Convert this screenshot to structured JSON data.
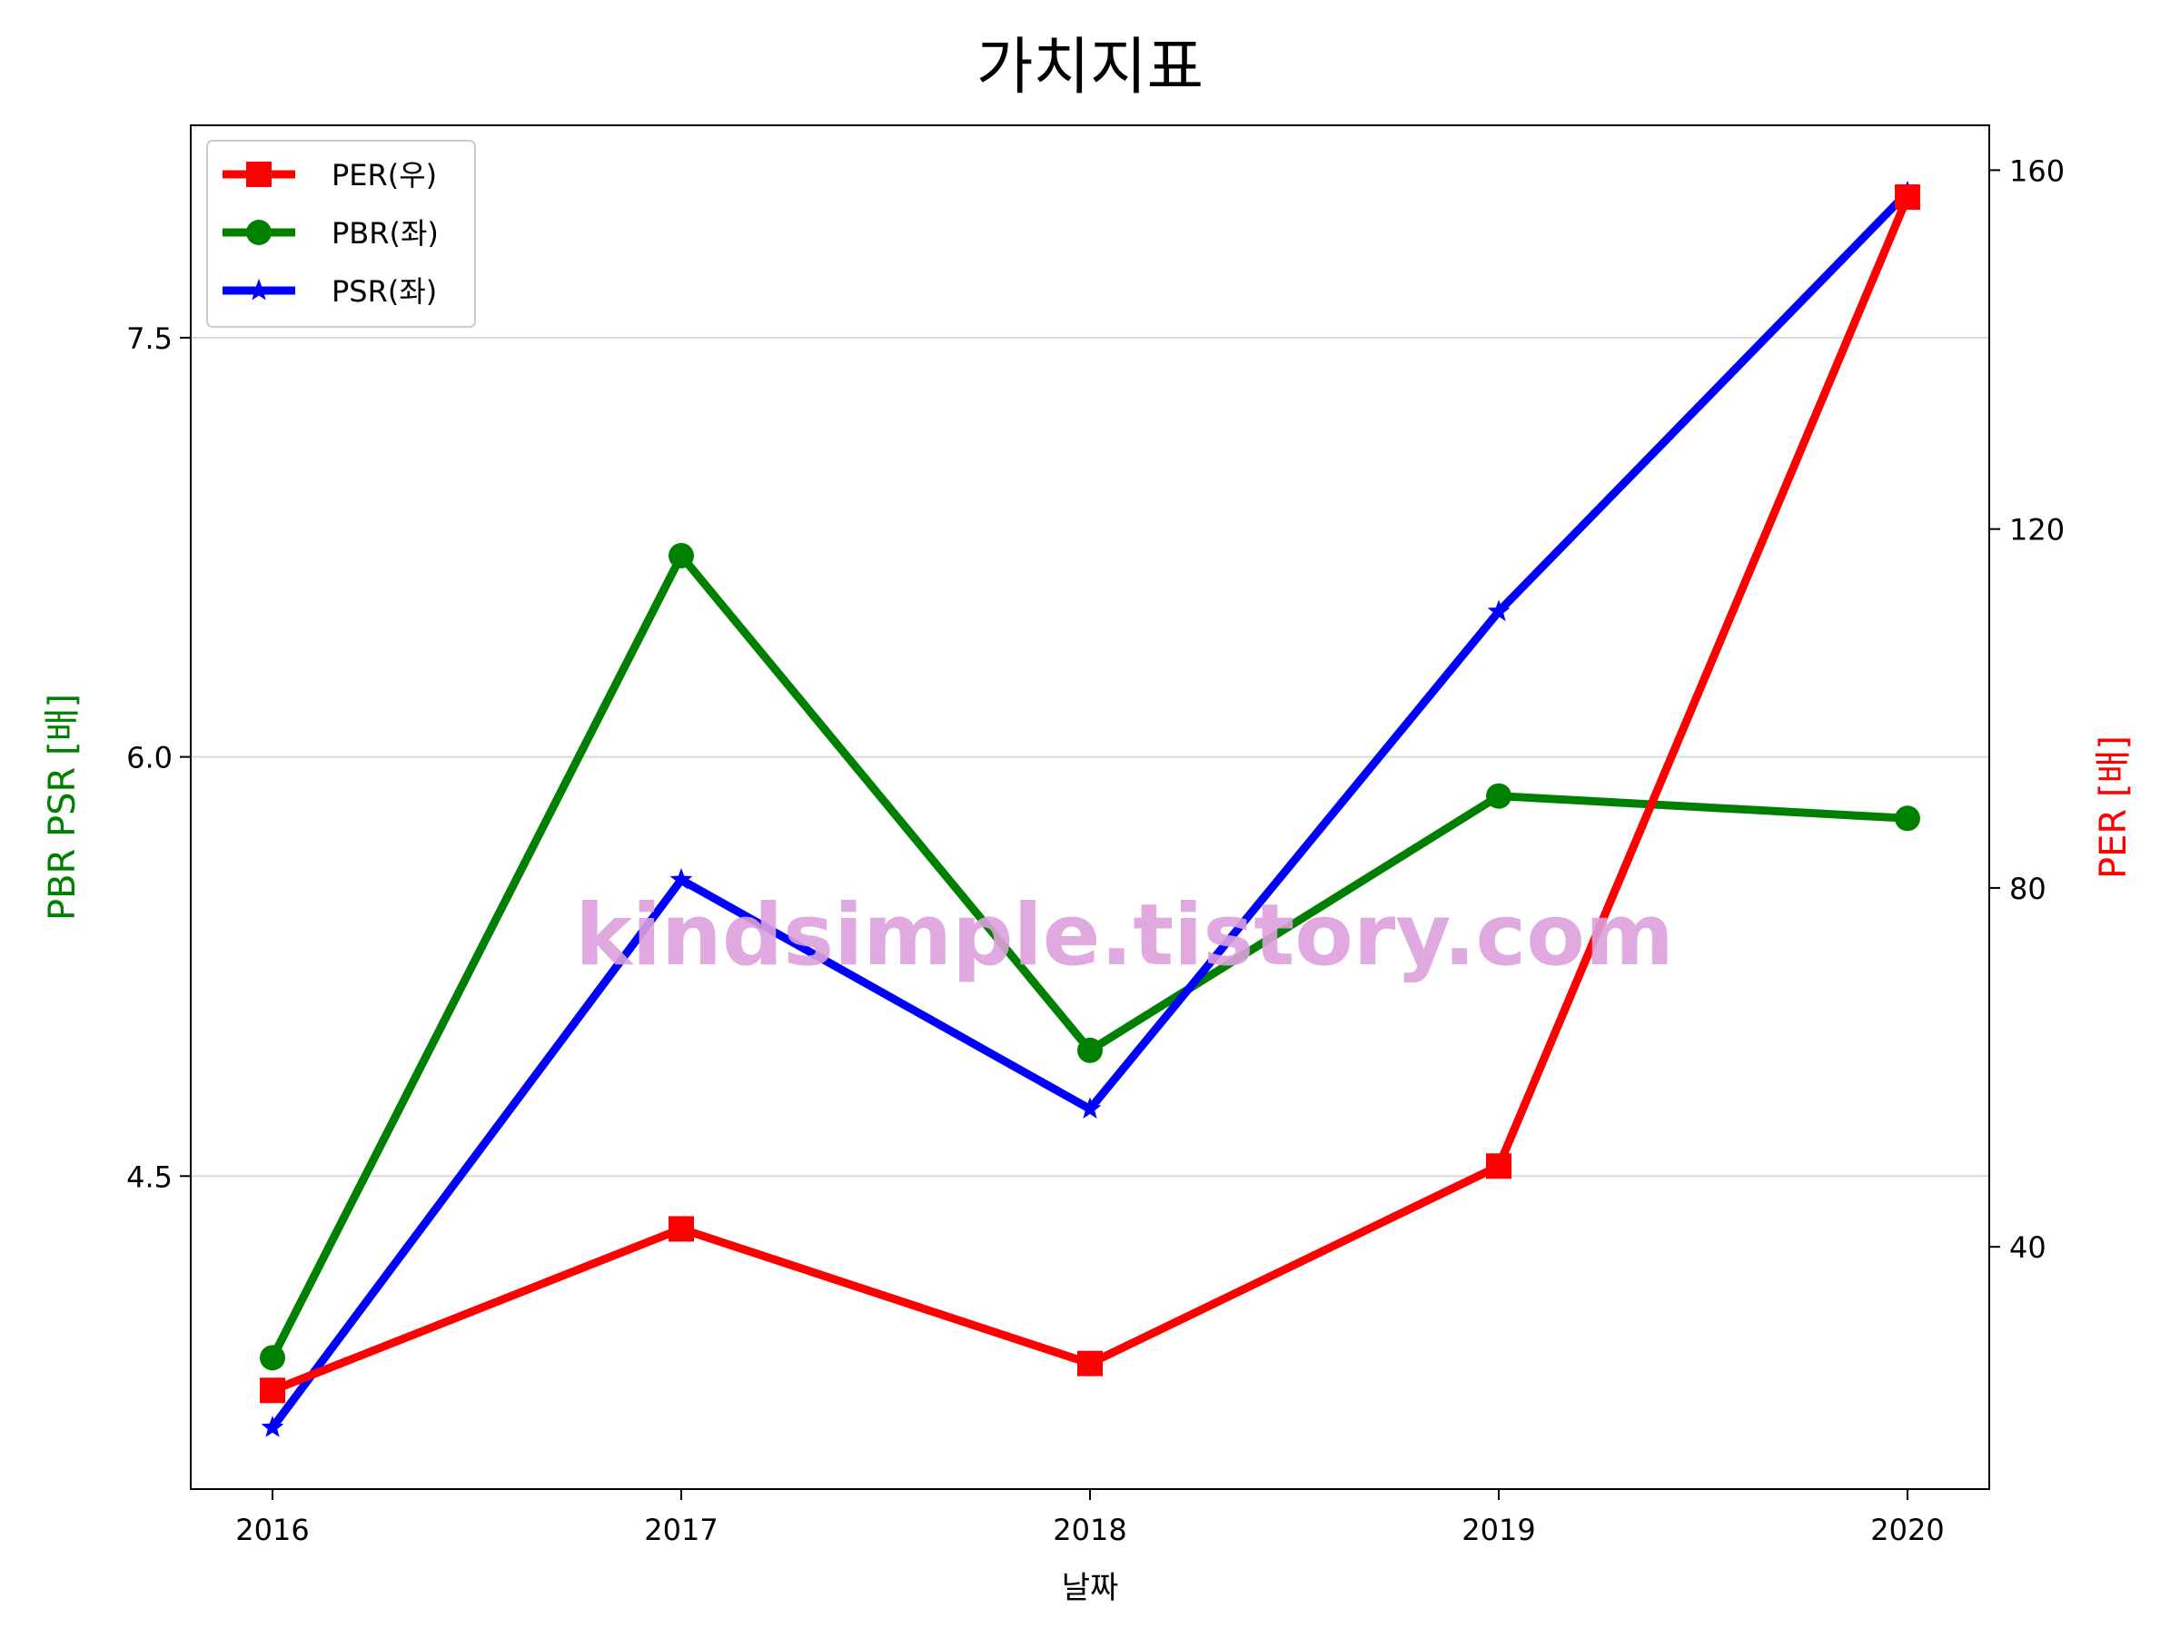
{
  "chart_data": {
    "type": "line",
    "title": "가치지표",
    "xlabel": "날짜",
    "ylabel_left": "PBR PSR [배]",
    "ylabel_right": "PER [배]",
    "categories": [
      "2016",
      "2017",
      "2018",
      "2019",
      "2020"
    ],
    "y_left": {
      "lim": [
        3.38,
        8.26
      ],
      "ticks": [
        "4.5",
        "6.0",
        "7.5"
      ],
      "tick_values": [
        4.5,
        6.0,
        7.5
      ]
    },
    "y_right": {
      "lim": [
        13,
        165
      ],
      "ticks": [
        "40",
        "80",
        "120",
        "160"
      ],
      "tick_values": [
        40,
        80,
        120,
        160
      ]
    },
    "grid": "horizontal (left axis)",
    "legend_position": "top-left",
    "series": [
      {
        "name": "PER(우)",
        "axis": "right",
        "color": "#ff0000",
        "marker": "square",
        "values": [
          24,
          42,
          27,
          49,
          157
        ]
      },
      {
        "name": "PBR(좌)",
        "axis": "left",
        "color": "#008000",
        "marker": "circle",
        "values": [
          3.85,
          6.72,
          4.95,
          5.86,
          5.78
        ]
      },
      {
        "name": "PSR(좌)",
        "axis": "left",
        "color": "#0000ff",
        "marker": "star",
        "values": [
          3.6,
          5.56,
          4.74,
          6.52,
          8.02
        ]
      }
    ],
    "watermark": "kindsimple.tistory.com"
  }
}
